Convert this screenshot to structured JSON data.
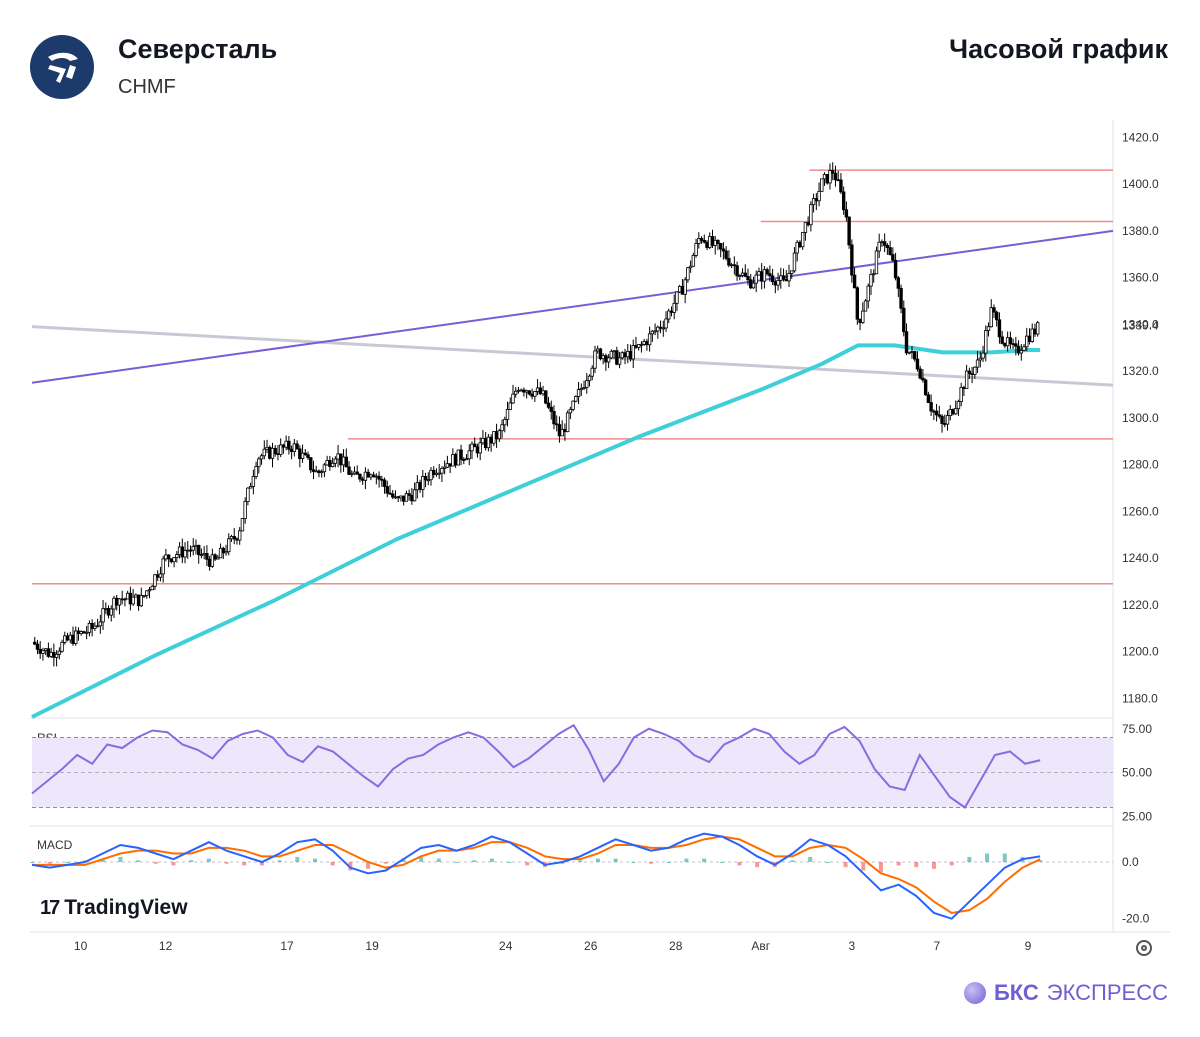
{
  "header": {
    "company": "Северсталь",
    "ticker": "CHMF",
    "chart_title": "Часовой график"
  },
  "branding": {
    "tradingview": "TradingView",
    "bks_bold": "БКС",
    "bks_light": "ЭКСПРЕСС"
  },
  "colors": {
    "candle": "#000000",
    "ma": "#3ecfd8",
    "level": "#f28b8b",
    "trend_up": "#7b5cd6",
    "trend_down": "#c9c9d6",
    "rsi": "#8a6be0",
    "macd": "#2962ff",
    "signal": "#ff6d00"
  },
  "chart_data": [
    {
      "type": "candlestick",
      "title": "Часовой график",
      "price_ticks": [
        "1420.0",
        "1400.0",
        "1380.0",
        "1360.0",
        "1340.0",
        "1320.0",
        "1300.0",
        "1280.0",
        "1260.0",
        "1240.0",
        "1220.0",
        "1200.0",
        "1180.0"
      ],
      "last_price_label": "1339.4",
      "ylim": [
        1172,
        1424
      ],
      "x_ticks": [
        "10",
        "12",
        "17",
        "19",
        "24",
        "26",
        "28",
        "Авг",
        "3",
        "7",
        "9"
      ],
      "levels": [
        1406,
        1384,
        1291,
        1229
      ],
      "close_path": [
        [
          0,
          1204
        ],
        [
          3,
          1199
        ],
        [
          6,
          1205
        ],
        [
          10,
          1210
        ],
        [
          14,
          1223
        ],
        [
          18,
          1222
        ],
        [
          22,
          1240
        ],
        [
          26,
          1244
        ],
        [
          30,
          1238
        ],
        [
          34,
          1251
        ],
        [
          37,
          1283
        ],
        [
          40,
          1286
        ],
        [
          43,
          1288
        ],
        [
          47,
          1276
        ],
        [
          50,
          1285
        ],
        [
          53,
          1274
        ],
        [
          56,
          1278
        ],
        [
          60,
          1264
        ],
        [
          63,
          1268
        ],
        [
          66,
          1278
        ],
        [
          70,
          1283
        ],
        [
          74,
          1288
        ],
        [
          77,
          1293
        ],
        [
          80,
          1314
        ],
        [
          84,
          1310
        ],
        [
          87,
          1292
        ],
        [
          90,
          1310
        ],
        [
          93,
          1328
        ],
        [
          97,
          1325
        ],
        [
          100,
          1330
        ],
        [
          104,
          1341
        ],
        [
          107,
          1355
        ],
        [
          110,
          1378
        ],
        [
          114,
          1370
        ],
        [
          118,
          1358
        ],
        [
          121,
          1362
        ],
        [
          124,
          1357
        ],
        [
          127,
          1380
        ],
        [
          130,
          1400
        ],
        [
          132,
          1406
        ],
        [
          134,
          1388
        ],
        [
          136,
          1340
        ],
        [
          138,
          1358
        ],
        [
          140,
          1378
        ],
        [
          142,
          1364
        ],
        [
          144,
          1330
        ],
        [
          146,
          1322
        ],
        [
          148,
          1305
        ],
        [
          150,
          1296
        ],
        [
          152,
          1306
        ],
        [
          154,
          1318
        ],
        [
          156,
          1324
        ],
        [
          158,
          1346
        ],
        [
          160,
          1333
        ],
        [
          162,
          1328
        ],
        [
          164,
          1335
        ],
        [
          166,
          1339
        ]
      ],
      "ma_path": [
        [
          0,
          1172
        ],
        [
          20,
          1198
        ],
        [
          40,
          1222
        ],
        [
          60,
          1248
        ],
        [
          80,
          1270
        ],
        [
          100,
          1292
        ],
        [
          120,
          1312
        ],
        [
          130,
          1323
        ],
        [
          136,
          1331
        ],
        [
          142,
          1331
        ],
        [
          150,
          1328
        ],
        [
          158,
          1328
        ],
        [
          164,
          1329
        ],
        [
          166,
          1329
        ]
      ],
      "trend_up": {
        "x1": 0,
        "y1": 1315,
        "x2": 178,
        "y2": 1380
      },
      "trend_down": {
        "x1": 0,
        "y1": 1339,
        "x2": 178,
        "y2": 1314
      }
    },
    {
      "type": "line",
      "title": "RSI",
      "y_ticks": [
        "75.00",
        "50.00",
        "25.00"
      ],
      "ylim": [
        20,
        80
      ],
      "band": [
        30,
        70
      ],
      "values": [
        38,
        45,
        52,
        60,
        55,
        66,
        64,
        70,
        74,
        73,
        66,
        63,
        58,
        68,
        72,
        74,
        70,
        60,
        56,
        65,
        62,
        55,
        48,
        42,
        52,
        58,
        60,
        66,
        70,
        73,
        70,
        62,
        53,
        58,
        65,
        72,
        77,
        63,
        45,
        55,
        70,
        75,
        72,
        68,
        60,
        56,
        66,
        70,
        75,
        72,
        62,
        55,
        60,
        72,
        76,
        68,
        52,
        42,
        40,
        60,
        48,
        36,
        30,
        45,
        60,
        62,
        55,
        57
      ]
    },
    {
      "type": "line",
      "title": "MACD",
      "y_ticks": [
        "0.0",
        "-20.0"
      ],
      "ylim": [
        -24,
        12
      ],
      "macd": [
        -1,
        -2,
        -1,
        0,
        3,
        6,
        5,
        3,
        1,
        4,
        7,
        4,
        2,
        0,
        3,
        7,
        8,
        4,
        -2,
        -4,
        -3,
        1,
        5,
        6,
        4,
        6,
        9,
        7,
        3,
        -1,
        0,
        2,
        5,
        8,
        6,
        4,
        5,
        8,
        10,
        9,
        6,
        2,
        -1,
        3,
        8,
        6,
        2,
        -4,
        -10,
        -8,
        -12,
        -18,
        -20,
        -14,
        -8,
        -2,
        1,
        2
      ],
      "signal": [
        -1,
        -1,
        -1,
        -1,
        1,
        3,
        4,
        4,
        3,
        3,
        5,
        5,
        4,
        2,
        2,
        4,
        6,
        6,
        3,
        0,
        -2,
        -1,
        2,
        4,
        4,
        5,
        7,
        7,
        5,
        2,
        1,
        1,
        3,
        6,
        6,
        5,
        5,
        6,
        8,
        9,
        8,
        5,
        2,
        2,
        5,
        6,
        5,
        1,
        -4,
        -6,
        -9,
        -14,
        -18,
        -17,
        -13,
        -7,
        -2,
        1
      ],
      "zero_label": "0.0"
    }
  ],
  "panel_labels": {
    "rsi": "RSI",
    "macd": "MACD"
  }
}
